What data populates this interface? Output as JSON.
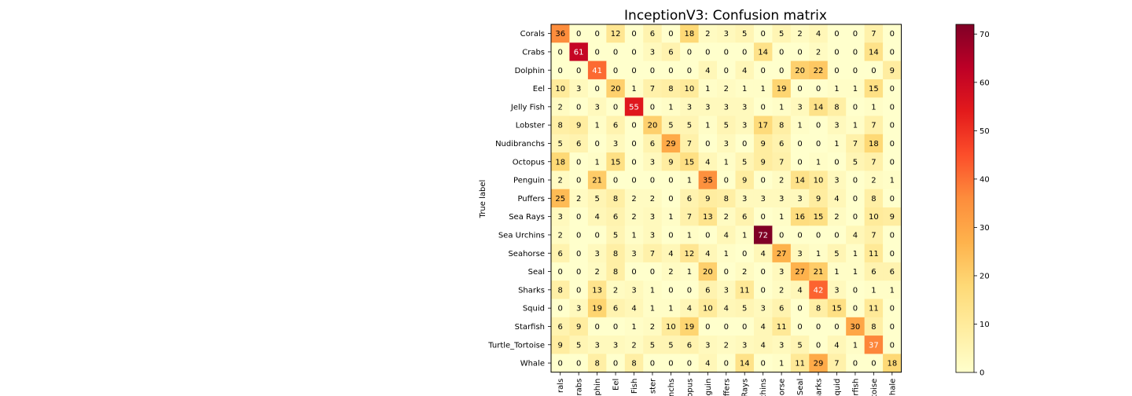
{
  "chart_data": {
    "type": "heatmap",
    "title": "InceptionV3: Confusion matrix",
    "ylabel": "True label",
    "xlabel": "",
    "rows": [
      "Corals",
      "Crabs",
      "Dolphin",
      "Eel",
      "Jelly Fish",
      "Lobster",
      "Nudibranchs",
      "Octopus",
      "Penguin",
      "Puffers",
      "Sea Rays",
      "Sea Urchins",
      "Seahorse",
      "Seal",
      "Sharks",
      "Squid",
      "Starfish",
      "Turtle_Tortoise",
      "Whale"
    ],
    "columns": [
      "Corals",
      "Crabs",
      "Dolphin",
      "Eel",
      "Jelly Fish",
      "Lobster",
      "Nudibranchs",
      "Octopus",
      "Penguin",
      "Puffers",
      "Sea Rays",
      "Sea Urchins",
      "Seahorse",
      "Seal",
      "Sharks",
      "Squid",
      "Starfish",
      "Turtle_Tortoise",
      "Whale"
    ],
    "column_tick_labels_visible": [
      "rals",
      "rabs",
      "lphin",
      "Eel",
      "Fish",
      "ster",
      "ranchs",
      "opus",
      "guin",
      "ffers",
      "Rays",
      "rchins",
      "orse",
      "Seal",
      "harks",
      "quid",
      "rfish",
      "toise",
      "hale"
    ],
    "matrix": [
      [
        36,
        0,
        0,
        12,
        0,
        6,
        0,
        18,
        2,
        3,
        5,
        0,
        5,
        2,
        4,
        0,
        0,
        7,
        0
      ],
      [
        0,
        61,
        0,
        0,
        0,
        3,
        6,
        0,
        0,
        0,
        0,
        14,
        0,
        0,
        2,
        0,
        0,
        14,
        0
      ],
      [
        0,
        0,
        41,
        0,
        0,
        0,
        0,
        0,
        4,
        0,
        4,
        0,
        0,
        20,
        22,
        0,
        0,
        0,
        9
      ],
      [
        10,
        3,
        0,
        20,
        1,
        7,
        8,
        10,
        1,
        2,
        1,
        1,
        19,
        0,
        0,
        1,
        1,
        15,
        0
      ],
      [
        2,
        0,
        3,
        0,
        55,
        0,
        1,
        3,
        3,
        3,
        3,
        0,
        1,
        3,
        14,
        8,
        0,
        1,
        0
      ],
      [
        8,
        9,
        1,
        6,
        0,
        20,
        5,
        5,
        1,
        5,
        3,
        17,
        8,
        1,
        0,
        3,
        1,
        7,
        0
      ],
      [
        5,
        6,
        0,
        3,
        0,
        6,
        29,
        7,
        0,
        3,
        0,
        9,
        6,
        0,
        0,
        1,
        7,
        18,
        0
      ],
      [
        18,
        0,
        1,
        15,
        0,
        3,
        9,
        15,
        4,
        1,
        5,
        9,
        7,
        0,
        1,
        0,
        5,
        7,
        0
      ],
      [
        2,
        0,
        21,
        0,
        0,
        0,
        0,
        1,
        35,
        0,
        9,
        0,
        2,
        14,
        10,
        3,
        0,
        2,
        1
      ],
      [
        25,
        2,
        5,
        8,
        2,
        2,
        0,
        6,
        9,
        8,
        3,
        3,
        3,
        3,
        9,
        4,
        0,
        8,
        0
      ],
      [
        3,
        0,
        4,
        6,
        2,
        3,
        1,
        7,
        13,
        2,
        6,
        0,
        1,
        16,
        15,
        2,
        0,
        10,
        9
      ],
      [
        2,
        0,
        0,
        5,
        1,
        3,
        0,
        1,
        0,
        4,
        1,
        72,
        0,
        0,
        0,
        0,
        4,
        7,
        0
      ],
      [
        6,
        0,
        3,
        8,
        3,
        7,
        4,
        12,
        4,
        1,
        0,
        4,
        27,
        3,
        1,
        5,
        1,
        11,
        0
      ],
      [
        0,
        0,
        2,
        8,
        0,
        0,
        2,
        1,
        20,
        0,
        2,
        0,
        3,
        27,
        21,
        1,
        1,
        6,
        6
      ],
      [
        8,
        0,
        13,
        2,
        3,
        1,
        0,
        0,
        6,
        3,
        11,
        0,
        2,
        4,
        42,
        3,
        0,
        1,
        1
      ],
      [
        0,
        3,
        19,
        6,
        4,
        1,
        1,
        4,
        10,
        4,
        5,
        3,
        6,
        0,
        8,
        15,
        0,
        11,
        0
      ],
      [
        6,
        9,
        0,
        0,
        1,
        2,
        10,
        19,
        0,
        0,
        0,
        4,
        11,
        0,
        0,
        0,
        30,
        8,
        0
      ],
      [
        9,
        5,
        3,
        3,
        2,
        5,
        5,
        6,
        3,
        2,
        3,
        4,
        3,
        5,
        0,
        4,
        1,
        37,
        0
      ],
      [
        0,
        0,
        8,
        0,
        8,
        0,
        0,
        0,
        4,
        0,
        14,
        0,
        1,
        11,
        29,
        7,
        0,
        0,
        18
      ]
    ],
    "colormap": "YlOrRd",
    "colorbar": {
      "min": 0,
      "max": 72,
      "ticks": [
        0,
        10,
        20,
        30,
        40,
        50,
        60,
        70
      ]
    }
  }
}
